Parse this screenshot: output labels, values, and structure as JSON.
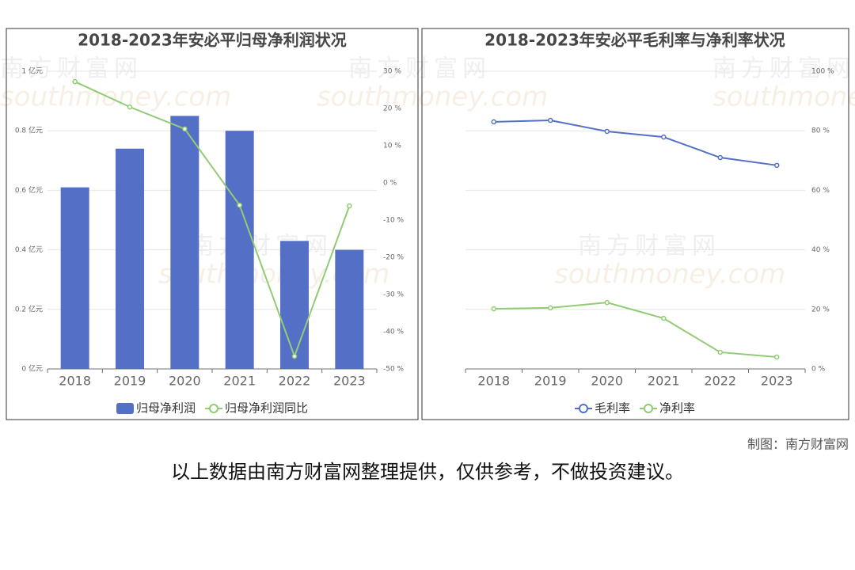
{
  "chart_data": [
    {
      "type": "bar",
      "title": "2018-2023年安必平归母净利润状况",
      "categories": [
        "2018",
        "2019",
        "2020",
        "2021",
        "2022",
        "2023"
      ],
      "series": [
        {
          "name": "归母净利润",
          "color": "#5470c6",
          "values": [
            0.61,
            0.74,
            0.85,
            0.8,
            0.43,
            0.4
          ]
        },
        {
          "name": "归母净利润同比",
          "color": "#91cc75",
          "type": "line",
          "axis": "y2",
          "values": [
            27.2,
            20.4,
            14.5,
            -6.0,
            -46.6,
            -6.2
          ]
        }
      ],
      "ylim": [
        0,
        1
      ],
      "yticks": [
        {
          "value": 0,
          "label": "0 亿元"
        },
        {
          "value": 0.2,
          "label": "0.2 亿元"
        },
        {
          "value": 0.4,
          "label": "0.4 亿元"
        },
        {
          "value": 0.6,
          "label": "0.6 亿元"
        },
        {
          "value": 0.8,
          "label": "0.8 亿元"
        },
        {
          "value": 1,
          "label": "1 亿元"
        }
      ],
      "y2lim": [
        -50,
        30
      ],
      "y2ticks": [
        {
          "value": -50,
          "label": "-50 %"
        },
        {
          "value": -40,
          "label": "-40 %"
        },
        {
          "value": -30,
          "label": "-30 %"
        },
        {
          "value": -20,
          "label": "-20 %"
        },
        {
          "value": -10,
          "label": "-10 %"
        },
        {
          "value": 0,
          "label": "0 %"
        },
        {
          "value": 10,
          "label": "10 %"
        },
        {
          "value": 20,
          "label": "20 %"
        },
        {
          "value": 30,
          "label": "30 %"
        }
      ],
      "grid": true
    },
    {
      "type": "line",
      "title": "2018-2023年安必平毛利率与净利率状况",
      "categories": [
        "2018",
        "2019",
        "2020",
        "2021",
        "2022",
        "2023"
      ],
      "series": [
        {
          "name": "毛利率",
          "color": "#5470c6",
          "values": [
            83.0,
            83.5,
            79.8,
            77.9,
            71.0,
            68.4
          ]
        },
        {
          "name": "净利率",
          "color": "#91cc75",
          "values": [
            20.2,
            20.5,
            22.3,
            17.0,
            5.6,
            4.0
          ]
        }
      ],
      "ylim": [
        0,
        100
      ],
      "yticks": [
        {
          "value": 0,
          "label": "0 %"
        },
        {
          "value": 20,
          "label": "20 %"
        },
        {
          "value": 40,
          "label": "40 %"
        },
        {
          "value": 60,
          "label": "60 %"
        },
        {
          "value": 80,
          "label": "80 %"
        },
        {
          "value": 100,
          "label": "100 %"
        }
      ],
      "grid": true
    }
  ],
  "watermark": {
    "brand": "南方财富网",
    "site": "southmoney.com"
  },
  "credit": "制图：南方财富网",
  "disclaimer": "以上数据由南方财富网整理提供，仅供参考，不做投资建议。"
}
